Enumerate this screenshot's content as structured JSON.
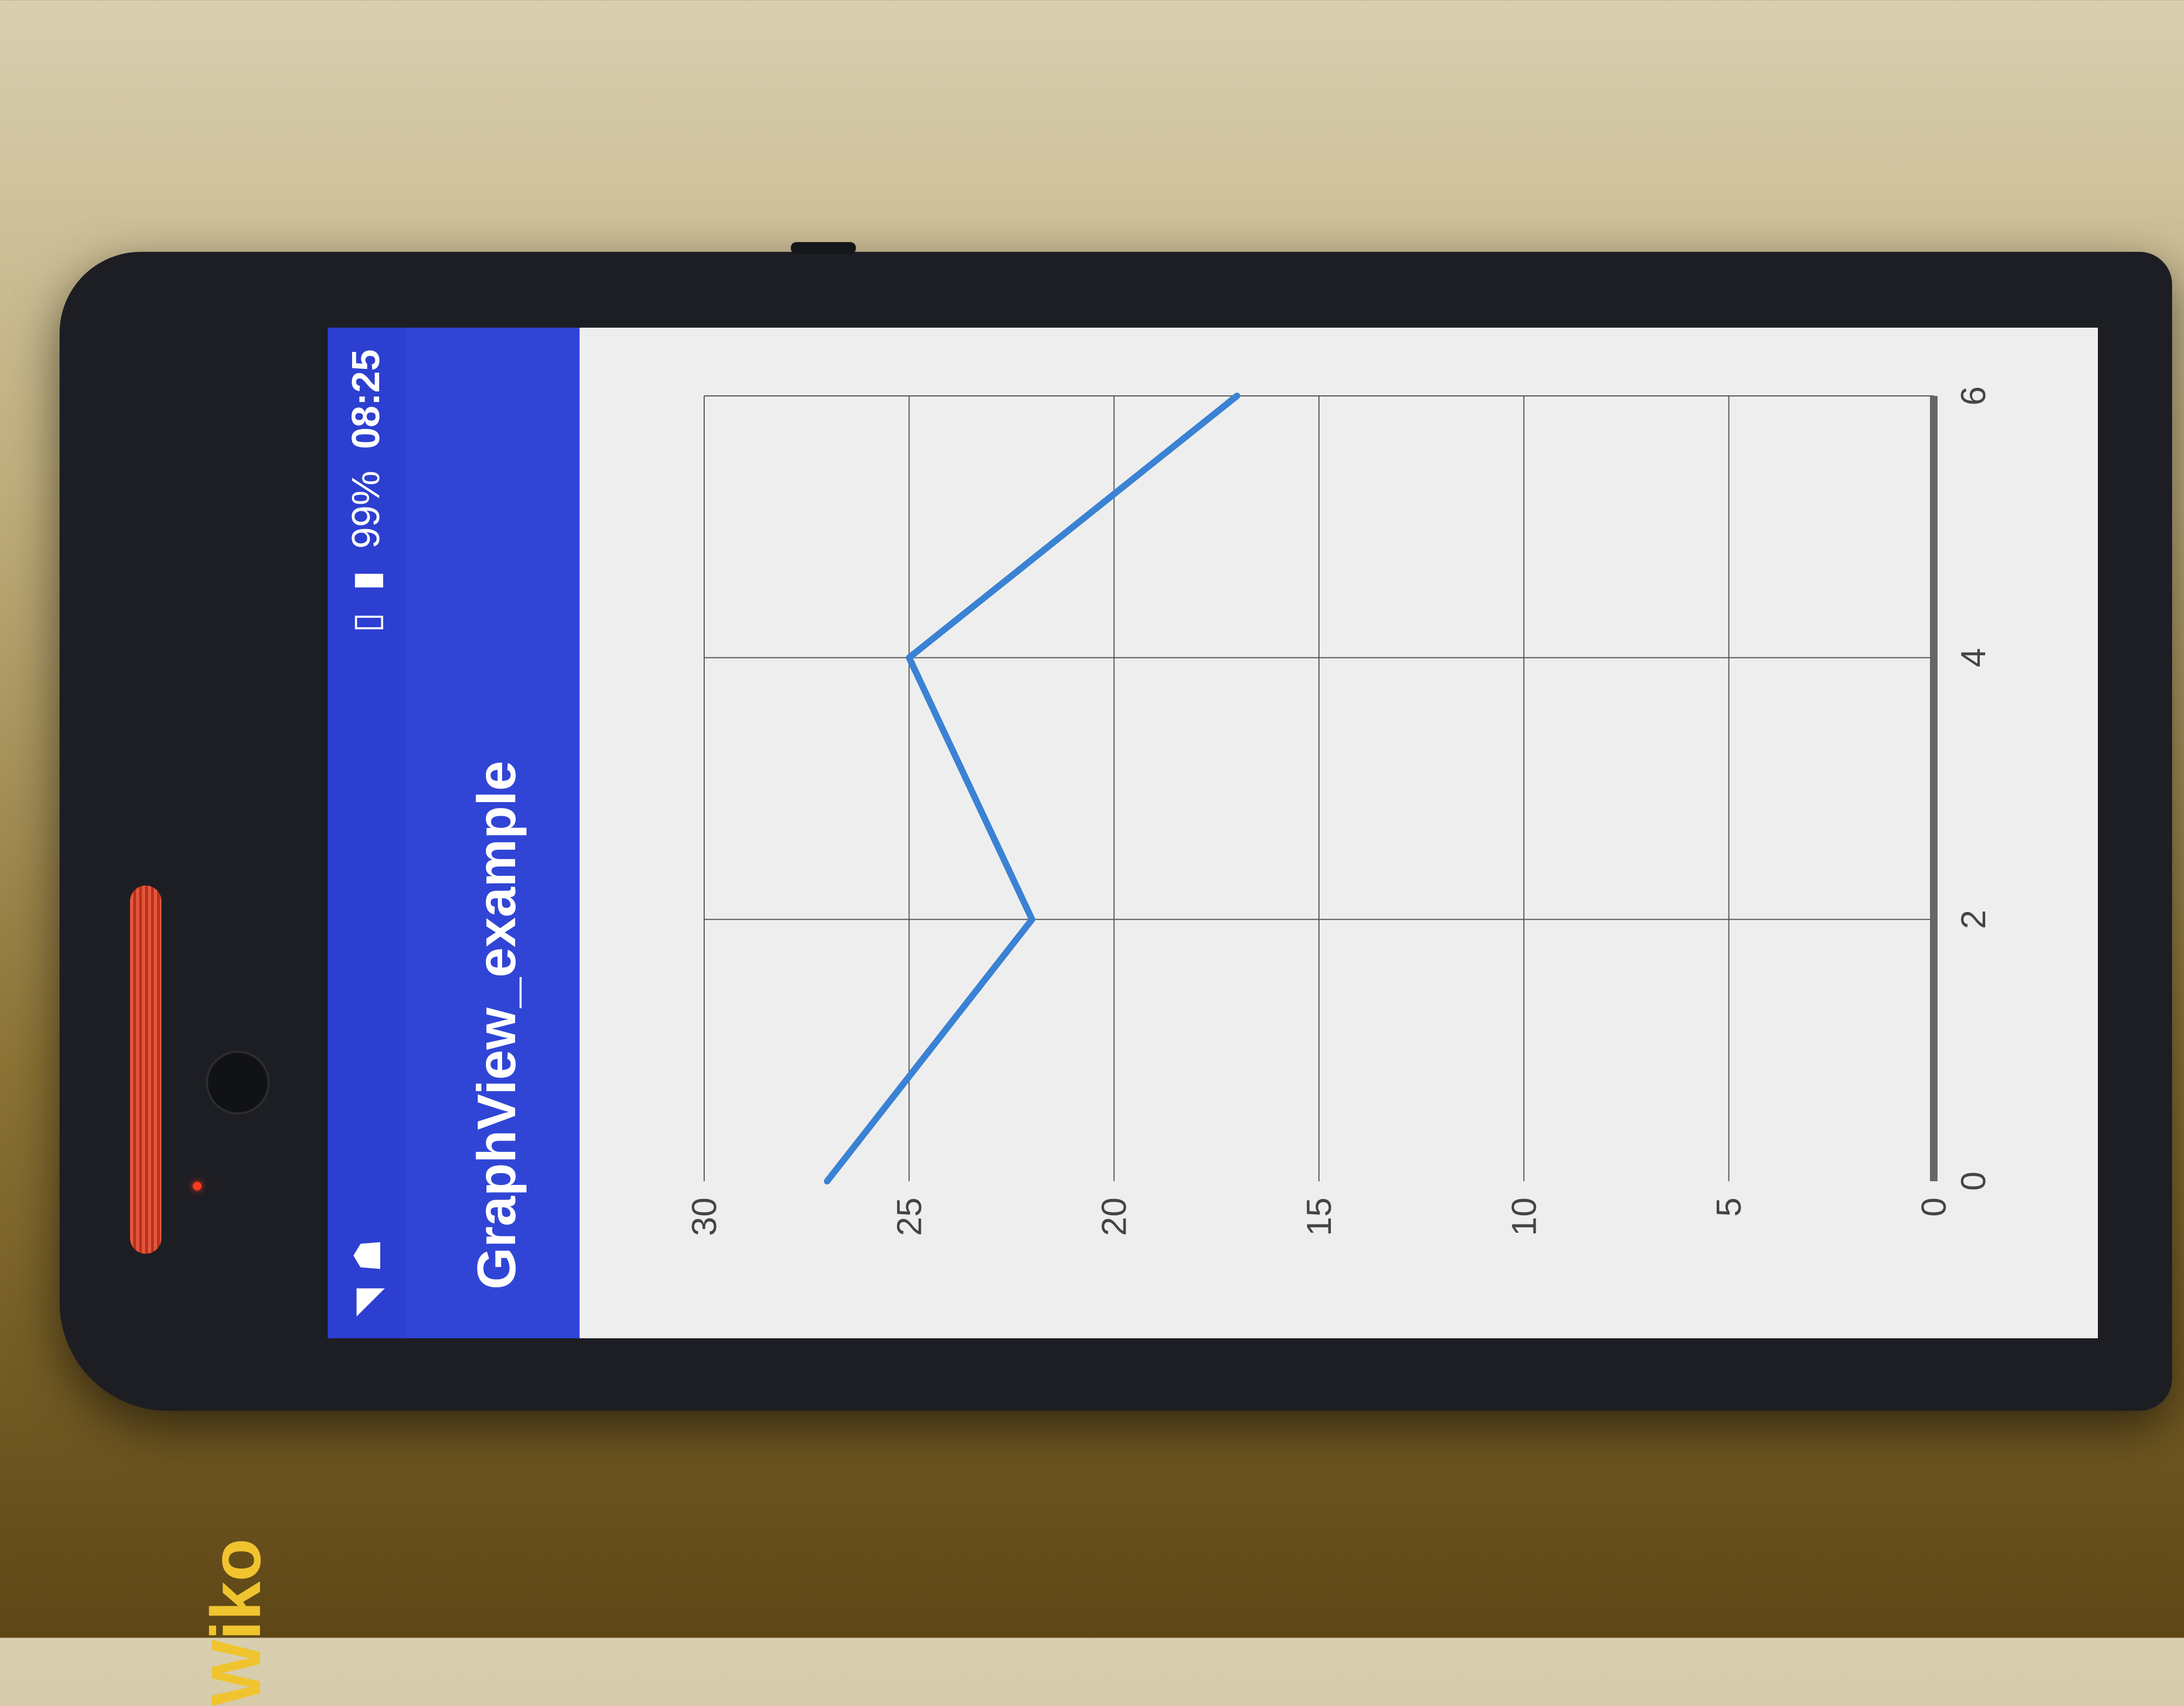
{
  "device": {
    "brand": "Wiko"
  },
  "status_bar": {
    "battery": "99%",
    "time": "08:25",
    "icons": [
      "wifi-icon",
      "android-debug-icon",
      "vibrate-icon",
      "battery-charging-icon"
    ]
  },
  "app": {
    "title": "GraphView_example"
  },
  "chart_data": {
    "type": "line",
    "x": [
      0,
      2,
      4,
      6
    ],
    "y_series": [
      {
        "values": [
          27,
          22,
          25,
          17
        ]
      }
    ],
    "x_ticks": [
      "0",
      "2",
      "4",
      "6"
    ],
    "y_ticks": [
      "0",
      "5",
      "10",
      "15",
      "20",
      "25",
      "30"
    ],
    "xlim": [
      0,
      6
    ],
    "ylim": [
      0,
      30
    ],
    "grid": true,
    "color": "#3a82d4"
  }
}
